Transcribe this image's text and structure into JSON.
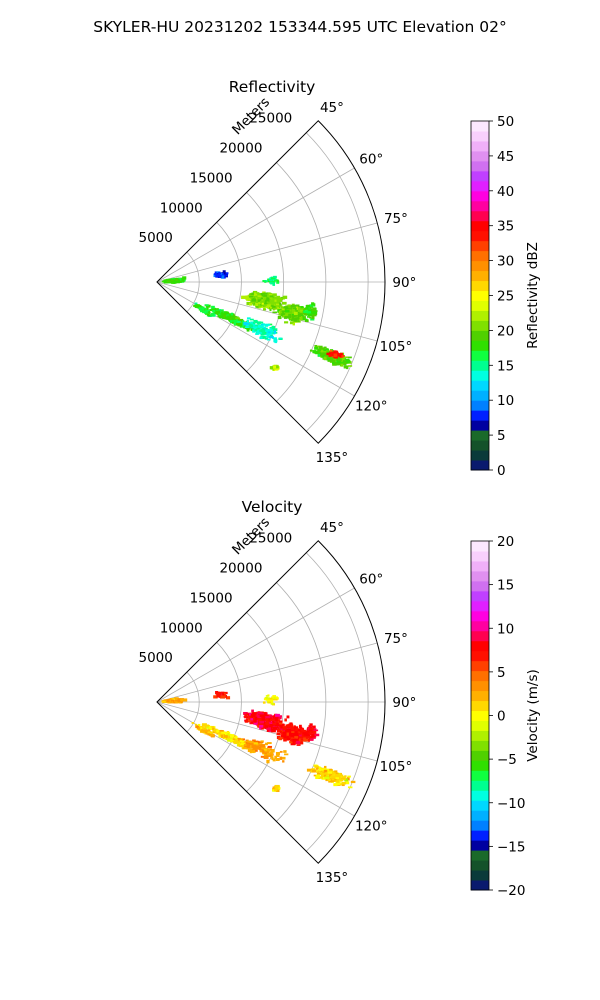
{
  "figure": {
    "suptitle": "SKYLER-HU  20231202  153344.595 UTC Elevation 02°"
  },
  "chart_data": [
    {
      "type": "heatmap",
      "projection": "polar-sector",
      "title": "Reflectivity",
      "radial_label": "Meters",
      "radial_ticks": [
        "5000",
        "10000",
        "15000",
        "20000",
        "25000"
      ],
      "radial_tick_values": [
        5000,
        10000,
        15000,
        20000,
        25000
      ],
      "radial_range": [
        0,
        27000
      ],
      "angle_ticks": [
        "45°",
        "60°",
        "75°",
        "90°",
        "105°",
        "120°",
        "135°"
      ],
      "angle_tick_values": [
        45,
        60,
        75,
        90,
        105,
        120,
        135
      ],
      "angle_range_deg": [
        45,
        135
      ],
      "grid": true,
      "colorbar": {
        "label": "Reflectivity dBZ",
        "range": [
          0,
          50
        ],
        "ticks": [
          "0",
          "5",
          "10",
          "15",
          "20",
          "25",
          "30",
          "35",
          "40",
          "45",
          "50"
        ],
        "tick_values": [
          0,
          5,
          10,
          15,
          20,
          25,
          30,
          35,
          40,
          45,
          50
        ],
        "colors": [
          "#0a1a6e",
          "#0a3a3a",
          "#14522a",
          "#1a6a2a",
          "#0000a0",
          "#0020ff",
          "#0080ff",
          "#00b0ff",
          "#00d8ff",
          "#00ffe0",
          "#00ff90",
          "#10ff40",
          "#30e000",
          "#50d000",
          "#80e000",
          "#b0f000",
          "#e0ff00",
          "#ffff00",
          "#ffd800",
          "#ffb000",
          "#ff9000",
          "#ff7000",
          "#ff4000",
          "#ff1000",
          "#ff0000",
          "#ff0050",
          "#ff00a0",
          "#ff00e0",
          "#e020ff",
          "#c040ff",
          "#d070f0",
          "#e090f0",
          "#f0b0f8",
          "#f8d0fc",
          "#fce8fe"
        ]
      },
      "echoes": [
        {
          "az": 100,
          "r": 13000,
          "value": 21,
          "spread_az": 5,
          "spread_r": 2800,
          "count": 460
        },
        {
          "az": 103,
          "r": 16500,
          "value": 20,
          "spread_az": 5,
          "spread_r": 2000,
          "count": 260
        },
        {
          "az": 113,
          "r": 22500,
          "value": 19,
          "spread_az": 2.5,
          "spread_r": 3000,
          "count": 240
        },
        {
          "az": 112,
          "r": 22800,
          "value": 34,
          "spread_az": 1.2,
          "spread_r": 1200,
          "count": 45
        },
        {
          "az": 116,
          "r": 10000,
          "value": 18,
          "spread_az": 3,
          "spread_r": 4500,
          "count": 300
        },
        {
          "az": 114,
          "r": 13500,
          "value": 14,
          "spread_az": 5,
          "spread_r": 3500,
          "count": 110
        },
        {
          "az": 86,
          "r": 2000,
          "value": 18,
          "spread_az": 6,
          "spread_r": 1500,
          "count": 200
        },
        {
          "az": 84,
          "r": 7600,
          "value": 8,
          "spread_az": 4,
          "spread_r": 900,
          "count": 40
        },
        {
          "az": 89,
          "r": 13500,
          "value": 16,
          "spread_az": 3,
          "spread_r": 1200,
          "count": 30
        },
        {
          "az": 101,
          "r": 18600,
          "value": 18,
          "spread_az": 4,
          "spread_r": 900,
          "count": 55
        },
        {
          "az": 126,
          "r": 17400,
          "value": 22,
          "spread_az": 1.5,
          "spread_r": 600,
          "count": 18
        },
        {
          "az": 121,
          "r": 6500,
          "value": 17,
          "spread_az": 3,
          "spread_r": 1800,
          "count": 70
        }
      ]
    },
    {
      "type": "heatmap",
      "projection": "polar-sector",
      "title": "Velocity",
      "radial_label": "Meters",
      "radial_ticks": [
        "5000",
        "10000",
        "15000",
        "20000",
        "25000"
      ],
      "radial_tick_values": [
        5000,
        10000,
        15000,
        20000,
        25000
      ],
      "radial_range": [
        0,
        27000
      ],
      "angle_ticks": [
        "45°",
        "60°",
        "75°",
        "90°",
        "105°",
        "120°",
        "135°"
      ],
      "angle_tick_values": [
        45,
        60,
        75,
        90,
        105,
        120,
        135
      ],
      "angle_range_deg": [
        45,
        135
      ],
      "grid": true,
      "colorbar": {
        "label": "Velocity (m/s)",
        "range": [
          -20,
          20
        ],
        "ticks": [
          "−20",
          "−15",
          "−10",
          "−5",
          "0",
          "5",
          "10",
          "15",
          "20"
        ],
        "tick_values": [
          -20,
          -15,
          -10,
          -5,
          0,
          5,
          10,
          15,
          20
        ],
        "colors": [
          "#0a1a6e",
          "#0a3a3a",
          "#14522a",
          "#1a6a2a",
          "#0000a0",
          "#0020ff",
          "#0080ff",
          "#00b0ff",
          "#00d8ff",
          "#00ffe0",
          "#00ff90",
          "#10ff40",
          "#30e000",
          "#50d000",
          "#80e000",
          "#b0f000",
          "#e0ff00",
          "#ffff00",
          "#ffd800",
          "#ffb000",
          "#ff9000",
          "#ff7000",
          "#ff4000",
          "#ff1000",
          "#ff0000",
          "#ff0050",
          "#ff00a0",
          "#ff00e0",
          "#e020ff",
          "#c040ff",
          "#d070f0",
          "#e090f0",
          "#f0b0f8",
          "#f8d0fc",
          "#fce8fe"
        ]
      },
      "echoes": [
        {
          "az": 100,
          "r": 13000,
          "value": 8,
          "spread_az": 5,
          "spread_r": 2800,
          "count": 520
        },
        {
          "az": 103,
          "r": 16500,
          "value": 7,
          "spread_az": 5,
          "spread_r": 2000,
          "count": 280
        },
        {
          "az": 113,
          "r": 22500,
          "value": 1,
          "spread_az": 2.5,
          "spread_r": 3000,
          "count": 240
        },
        {
          "az": 116,
          "r": 10000,
          "value": 1,
          "spread_az": 3,
          "spread_r": 4500,
          "count": 300
        },
        {
          "az": 114,
          "r": 13500,
          "value": 3,
          "spread_az": 5,
          "spread_r": 3500,
          "count": 110
        },
        {
          "az": 86,
          "r": 2000,
          "value": 3,
          "spread_az": 6,
          "spread_r": 1500,
          "count": 220
        },
        {
          "az": 84,
          "r": 7600,
          "value": 7,
          "spread_az": 4,
          "spread_r": 900,
          "count": 40
        },
        {
          "az": 89,
          "r": 13500,
          "value": 0,
          "spread_az": 3,
          "spread_r": 1200,
          "count": 30
        },
        {
          "az": 101,
          "r": 18600,
          "value": 8,
          "spread_az": 4,
          "spread_r": 900,
          "count": 55
        },
        {
          "az": 126,
          "r": 17400,
          "value": 1,
          "spread_az": 1.5,
          "spread_r": 600,
          "count": 18
        },
        {
          "az": 121,
          "r": 6500,
          "value": 2,
          "spread_az": 3,
          "spread_r": 1800,
          "count": 70
        }
      ]
    }
  ]
}
